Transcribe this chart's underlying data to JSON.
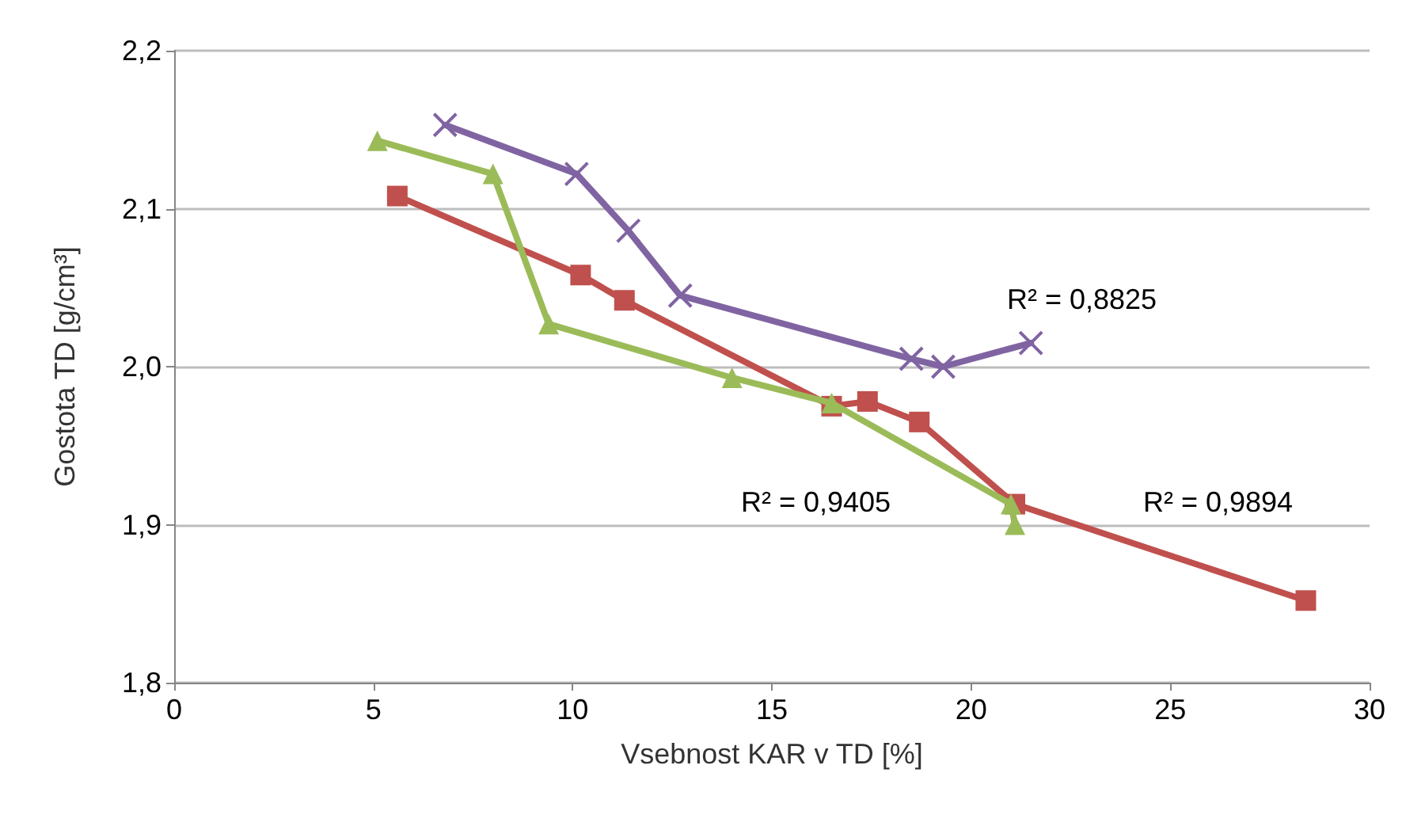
{
  "chart_data": {
    "type": "line",
    "xlabel": "Vsebnost KAR v TD [%]",
    "ylabel": "Gostota TD [g/cm³]",
    "xlim": [
      0,
      30
    ],
    "xticks": [
      0,
      5,
      10,
      15,
      20,
      25,
      30
    ],
    "ylim": [
      1.8,
      2.2
    ],
    "yticks": [
      {
        "value": 1.8,
        "label": "1,8"
      },
      {
        "value": 1.9,
        "label": "1,9"
      },
      {
        "value": 2.0,
        "label": "2,0"
      },
      {
        "value": 2.1,
        "label": "2,1"
      },
      {
        "value": 2.2,
        "label": "2,2"
      }
    ],
    "grid": "y",
    "series": [
      {
        "color": "#c0504d",
        "marker": "square",
        "x": [
          5.6,
          10.2,
          11.3,
          16.5,
          17.4,
          18.7,
          21.1,
          28.4
        ],
        "values": [
          2.108,
          2.058,
          2.042,
          1.975,
          1.978,
          1.965,
          1.913,
          1.852
        ]
      },
      {
        "color": "#9bbb59",
        "marker": "triangle",
        "x": [
          5.1,
          8.0,
          9.4,
          14.0,
          16.5,
          21.0,
          21.1
        ],
        "values": [
          2.143,
          2.122,
          2.027,
          1.993,
          1.977,
          1.913,
          1.9
        ]
      },
      {
        "color": "#8064a2",
        "marker": "cross",
        "x": [
          6.8,
          10.1,
          11.4,
          12.7,
          18.5,
          19.3,
          21.5
        ],
        "values": [
          2.153,
          2.122,
          2.086,
          2.045,
          2.005,
          2.0,
          2.015
        ]
      }
    ],
    "annotations": [
      "R² = 0,8825",
      "R² = 0,9405",
      "R² = 0,9894"
    ]
  }
}
